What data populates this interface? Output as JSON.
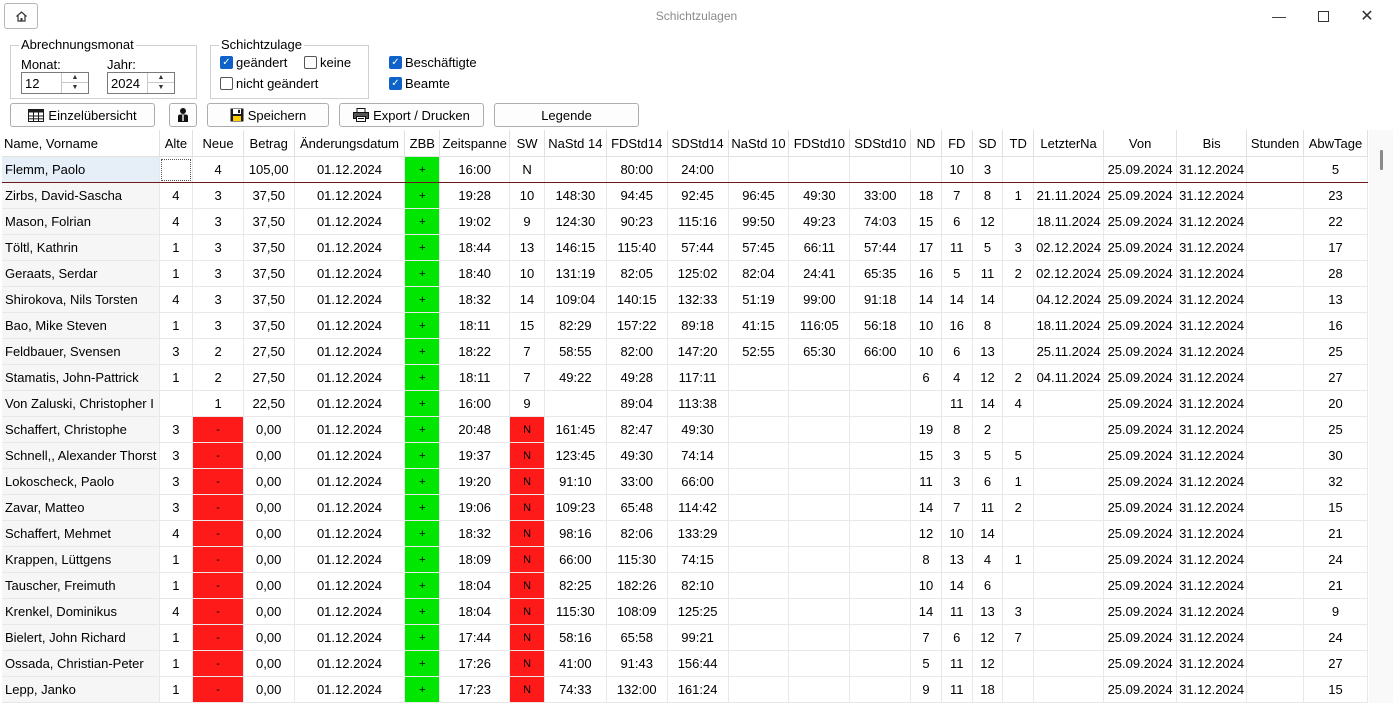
{
  "window": {
    "title": "Schichtzulagen"
  },
  "abrechnung": {
    "group_title": "Abrechnungsmonat",
    "monat_label": "Monat:",
    "monat_value": "12",
    "jahr_label": "Jahr:",
    "jahr_value": "2024"
  },
  "schichtzulage": {
    "group_title": "Schichtzulage",
    "geaendert": {
      "label": "geändert",
      "checked": true
    },
    "keine": {
      "label": "keine",
      "checked": false
    },
    "nicht_geaendert": {
      "label": "nicht geändert",
      "checked": false
    }
  },
  "filter": {
    "beschaeftigte": {
      "label": "Beschäftigte",
      "checked": true
    },
    "beamte": {
      "label": "Beamte",
      "checked": true
    }
  },
  "buttons": {
    "einzel": "Einzelübersicht",
    "speichern": "Speichern",
    "export": "Export / Drucken",
    "legende": "Legende"
  },
  "table": {
    "columns": [
      "Name, Vorname",
      "Alte",
      "Neue",
      "Betrag",
      "Änderungsdatum",
      "ZBB",
      "Zeitspanne",
      "SW",
      "NaStd 14",
      "FDStd14",
      "SDStd14",
      "NaStd 10",
      "FDStd10",
      "SDStd10",
      "ND",
      "FD",
      "SD",
      "TD",
      "LetzterNa",
      "Von",
      "Bis",
      "Stunden",
      "AbwTage"
    ],
    "rows": [
      [
        "Flemm, Paolo",
        "",
        "4",
        "105,00",
        "01.12.2024",
        "+",
        "16:00",
        "N",
        "",
        "80:00",
        "24:00",
        "",
        "",
        "",
        "",
        "10",
        "3",
        "",
        "",
        "25.09.2024",
        "31.12.2024",
        "",
        "5"
      ],
      [
        "Zirbs, David-Sascha",
        "4",
        "3",
        "37,50",
        "01.12.2024",
        "+",
        "19:28",
        "10",
        "148:30",
        "94:45",
        "92:45",
        "96:45",
        "49:30",
        "33:00",
        "18",
        "7",
        "8",
        "1",
        "21.11.2024",
        "25.09.2024",
        "31.12.2024",
        "",
        "23"
      ],
      [
        "Mason, Folrian",
        "4",
        "3",
        "37,50",
        "01.12.2024",
        "+",
        "19:02",
        "9",
        "124:30",
        "90:23",
        "115:16",
        "99:50",
        "49:23",
        "74:03",
        "15",
        "6",
        "12",
        "",
        "18.11.2024",
        "25.09.2024",
        "31.12.2024",
        "",
        "22"
      ],
      [
        "Töltl, Kathrin",
        "1",
        "3",
        "37,50",
        "01.12.2024",
        "+",
        "18:44",
        "13",
        "146:15",
        "115:40",
        "57:44",
        "57:45",
        "66:11",
        "57:44",
        "17",
        "11",
        "5",
        "3",
        "02.12.2024",
        "25.09.2024",
        "31.12.2024",
        "",
        "17"
      ],
      [
        "Geraats, Serdar",
        "1",
        "3",
        "37,50",
        "01.12.2024",
        "+",
        "18:40",
        "10",
        "131:19",
        "82:05",
        "125:02",
        "82:04",
        "24:41",
        "65:35",
        "16",
        "5",
        "11",
        "2",
        "02.12.2024",
        "25.09.2024",
        "31.12.2024",
        "",
        "28"
      ],
      [
        "Shirokova, Nils Torsten",
        "4",
        "3",
        "37,50",
        "01.12.2024",
        "+",
        "18:32",
        "14",
        "109:04",
        "140:15",
        "132:33",
        "51:19",
        "99:00",
        "91:18",
        "14",
        "14",
        "14",
        "",
        "04.12.2024",
        "25.09.2024",
        "31.12.2024",
        "",
        "13"
      ],
      [
        "Bao, Mike Steven",
        "1",
        "3",
        "37,50",
        "01.12.2024",
        "+",
        "18:11",
        "15",
        "82:29",
        "157:22",
        "89:18",
        "41:15",
        "116:05",
        "56:18",
        "10",
        "16",
        "8",
        "",
        "18.11.2024",
        "25.09.2024",
        "31.12.2024",
        "",
        "16"
      ],
      [
        "Feldbauer, Svensen",
        "3",
        "2",
        "27,50",
        "01.12.2024",
        "+",
        "18:22",
        "7",
        "58:55",
        "82:00",
        "147:20",
        "52:55",
        "65:30",
        "66:00",
        "10",
        "6",
        "13",
        "",
        "25.11.2024",
        "25.09.2024",
        "31.12.2024",
        "",
        "25"
      ],
      [
        "Stamatis, John-Pattrick",
        "1",
        "2",
        "27,50",
        "01.12.2024",
        "+",
        "18:11",
        "7",
        "49:22",
        "49:28",
        "117:11",
        "",
        "",
        "",
        "6",
        "4",
        "12",
        "2",
        "04.11.2024",
        "25.09.2024",
        "31.12.2024",
        "",
        "27"
      ],
      [
        "Von Zaluski, Christopher I",
        "",
        "1",
        "22,50",
        "01.12.2024",
        "+",
        "16:00",
        "9",
        "",
        "89:04",
        "113:38",
        "",
        "",
        "",
        "",
        "11",
        "14",
        "4",
        "",
        "25.09.2024",
        "31.12.2024",
        "",
        "20"
      ],
      [
        "Schaffert, Christophe",
        "3",
        "-",
        "0,00",
        "01.12.2024",
        "+",
        "20:48",
        "N",
        "161:45",
        "82:47",
        "49:30",
        "",
        "",
        "",
        "19",
        "8",
        "2",
        "",
        "",
        "25.09.2024",
        "31.12.2024",
        "",
        "25"
      ],
      [
        "Schnell,, Alexander Thorst",
        "3",
        "-",
        "0,00",
        "01.12.2024",
        "+",
        "19:37",
        "N",
        "123:45",
        "49:30",
        "74:14",
        "",
        "",
        "",
        "15",
        "3",
        "5",
        "5",
        "",
        "25.09.2024",
        "31.12.2024",
        "",
        "30"
      ],
      [
        "Lokoscheck, Paolo",
        "3",
        "-",
        "0,00",
        "01.12.2024",
        "+",
        "19:20",
        "N",
        "91:10",
        "33:00",
        "66:00",
        "",
        "",
        "",
        "11",
        "3",
        "6",
        "1",
        "",
        "25.09.2024",
        "31.12.2024",
        "",
        "32"
      ],
      [
        "Zavar, Matteo",
        "3",
        "-",
        "0,00",
        "01.12.2024",
        "+",
        "19:06",
        "N",
        "109:23",
        "65:48",
        "114:42",
        "",
        "",
        "",
        "14",
        "7",
        "11",
        "2",
        "",
        "25.09.2024",
        "31.12.2024",
        "",
        "15"
      ],
      [
        "Schaffert, Mehmet",
        "4",
        "-",
        "0,00",
        "01.12.2024",
        "+",
        "18:32",
        "N",
        "98:16",
        "82:06",
        "133:29",
        "",
        "",
        "",
        "12",
        "10",
        "14",
        "",
        "",
        "25.09.2024",
        "31.12.2024",
        "",
        "21"
      ],
      [
        "Krappen, Lüttgens",
        "1",
        "-",
        "0,00",
        "01.12.2024",
        "+",
        "18:09",
        "N",
        "66:00",
        "115:30",
        "74:15",
        "",
        "",
        "",
        "8",
        "13",
        "4",
        "1",
        "",
        "25.09.2024",
        "31.12.2024",
        "",
        "24"
      ],
      [
        "Tauscher, Freimuth",
        "1",
        "-",
        "0,00",
        "01.12.2024",
        "+",
        "18:04",
        "N",
        "82:25",
        "182:26",
        "82:10",
        "",
        "",
        "",
        "10",
        "14",
        "6",
        "",
        "",
        "25.09.2024",
        "31.12.2024",
        "",
        "21"
      ],
      [
        "Krenkel, Dominikus",
        "4",
        "-",
        "0,00",
        "01.12.2024",
        "+",
        "18:04",
        "N",
        "115:30",
        "108:09",
        "125:25",
        "",
        "",
        "",
        "14",
        "11",
        "13",
        "3",
        "",
        "25.09.2024",
        "31.12.2024",
        "",
        "9"
      ],
      [
        "Bielert, John Richard",
        "1",
        "-",
        "0,00",
        "01.12.2024",
        "+",
        "17:44",
        "N",
        "58:16",
        "65:58",
        "99:21",
        "",
        "",
        "",
        "7",
        "6",
        "12",
        "7",
        "",
        "25.09.2024",
        "31.12.2024",
        "",
        "24"
      ],
      [
        "Ossada, Christian-Peter",
        "1",
        "-",
        "0,00",
        "01.12.2024",
        "+",
        "17:26",
        "N",
        "41:00",
        "91:43",
        "156:44",
        "",
        "",
        "",
        "5",
        "11",
        "12",
        "",
        "",
        "25.09.2024",
        "31.12.2024",
        "",
        "27"
      ],
      [
        "Lepp, Janko",
        "1",
        "-",
        "0,00",
        "01.12.2024",
        "+",
        "17:23",
        "N",
        "74:33",
        "132:00",
        "161:24",
        "",
        "",
        "",
        "9",
        "11",
        "18",
        "",
        "",
        "25.09.2024",
        "31.12.2024",
        "",
        "15"
      ]
    ]
  },
  "colors": {
    "zbb_green": "#00e600",
    "alert_red": "#ff1a1a",
    "checkbox_blue": "#0f62c8"
  }
}
